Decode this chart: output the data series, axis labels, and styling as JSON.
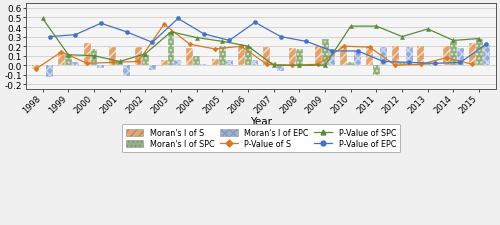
{
  "years": [
    1998,
    1999,
    2000,
    2001,
    2002,
    2003,
    2004,
    2005,
    2006,
    2007,
    2008,
    2009,
    2010,
    2011,
    2012,
    2013,
    2014,
    2015
  ],
  "moran_S": [
    -0.04,
    0.14,
    0.23,
    0.19,
    0.19,
    0.05,
    0.18,
    0.07,
    0.2,
    0.19,
    0.18,
    0.2,
    0.2,
    0.2,
    0.2,
    0.2,
    0.2,
    0.23
  ],
  "moran_SPC": [
    0.0,
    0.12,
    0.17,
    0.04,
    0.12,
    0.35,
    0.1,
    0.2,
    0.2,
    0.03,
    0.17,
    0.27,
    0.03,
    -0.1,
    0.03,
    0.02,
    0.25,
    0.28
  ],
  "moran_EPC": [
    -0.12,
    0.03,
    -0.03,
    -0.11,
    -0.05,
    0.06,
    0.01,
    0.05,
    0.05,
    -0.06,
    0.0,
    0.17,
    0.15,
    0.19,
    0.19,
    0.02,
    0.18,
    0.21
  ],
  "pval_S": [
    -0.04,
    0.14,
    0.02,
    0.03,
    0.04,
    0.43,
    0.22,
    0.17,
    0.2,
    0.01,
    0.0,
    0.01,
    0.2,
    0.19,
    0.0,
    0.01,
    0.08,
    0.01
  ],
  "pval_SPC": [
    0.49,
    0.11,
    0.1,
    0.04,
    0.12,
    0.35,
    0.29,
    0.25,
    0.2,
    0.0,
    0.0,
    0.0,
    0.41,
    0.41,
    0.3,
    0.38,
    0.26,
    0.28
  ],
  "pval_EPC": [
    0.3,
    0.32,
    0.44,
    0.35,
    0.24,
    0.49,
    0.33,
    0.26,
    0.45,
    0.3,
    0.25,
    0.15,
    0.15,
    0.04,
    0.03,
    0.02,
    0.03,
    0.22
  ],
  "color_S": "#d97820",
  "color_SPC": "#5a8a3c",
  "color_EPC": "#4472c4",
  "bar_width": 0.27,
  "ylim": [
    -0.25,
    0.65
  ],
  "yticks": [
    -0.2,
    -0.1,
    0.0,
    0.1,
    0.2,
    0.3,
    0.4,
    0.5,
    0.6
  ],
  "xlabel": "Year",
  "figsize": [
    5.0,
    2.26
  ],
  "dpi": 100
}
